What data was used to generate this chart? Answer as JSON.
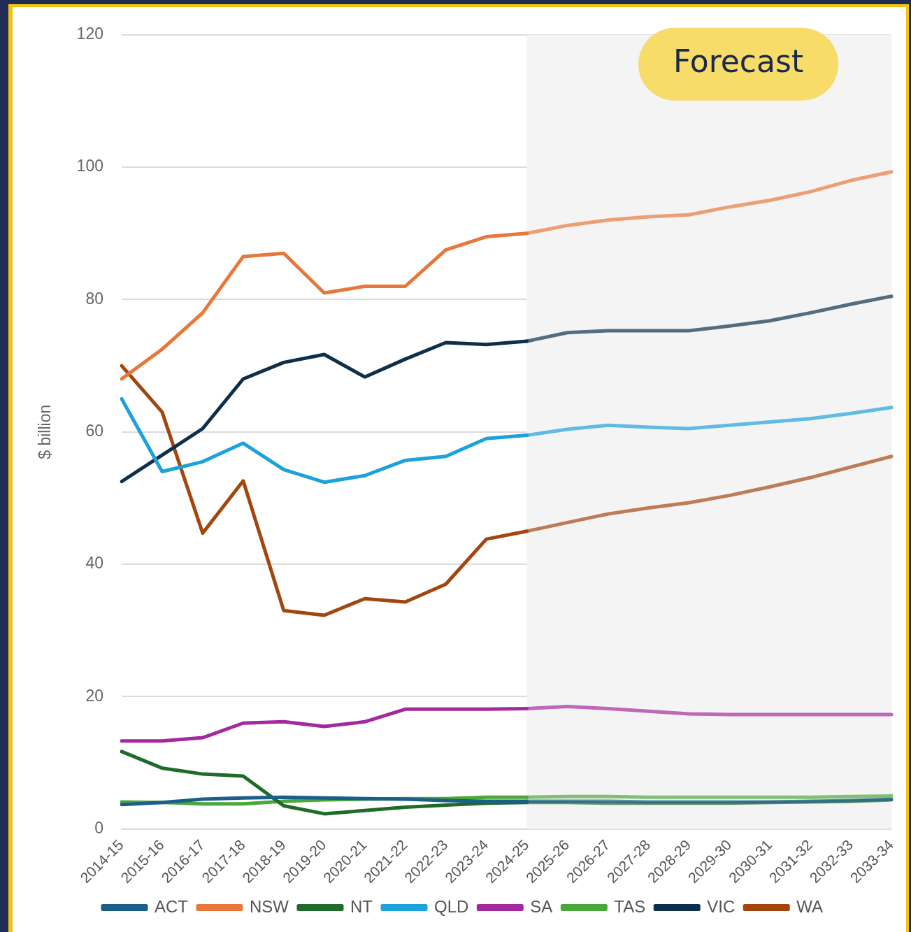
{
  "chart_data": {
    "type": "line",
    "ylabel": "$ billion",
    "categories": [
      "2014-15",
      "2015-16",
      "2016-17",
      "2017-18",
      "2018-19",
      "2019-20",
      "2020-21",
      "2021-22",
      "2022-23",
      "2023-24",
      "2024-25",
      "2025-26",
      "2026-27",
      "2027-28",
      "2028-29",
      "2029-30",
      "2030-31",
      "2031-32",
      "2032-33",
      "2033-34"
    ],
    "series": [
      {
        "name": "ACT",
        "color": "#1a5f8a",
        "values": [
          3.7,
          4.0,
          4.5,
          4.7,
          4.8,
          4.7,
          4.6,
          4.5,
          4.3,
          4.2,
          4.2,
          4.2,
          4.2,
          4.1,
          4.1,
          4.1,
          4.1,
          4.2,
          4.3,
          4.5
        ]
      },
      {
        "name": "NSW",
        "color": "#e8773a",
        "values": [
          68,
          72.5,
          78,
          86.5,
          87,
          81,
          82,
          82,
          87.5,
          89.5,
          90,
          91.2,
          92,
          92.5,
          92.8,
          94,
          95,
          96.3,
          98,
          99.3
        ]
      },
      {
        "name": "NT",
        "color": "#1e6b2a",
        "values": [
          11.7,
          9.2,
          8.3,
          8,
          3.5,
          2.3,
          2.8,
          3.3,
          3.6,
          3.9,
          4.0,
          4.0,
          3.9,
          3.9,
          3.9,
          3.9,
          4.0,
          4.1,
          4.2,
          4.4
        ]
      },
      {
        "name": "QLD",
        "color": "#1ba1db",
        "values": [
          65,
          54,
          55.5,
          58.3,
          54.3,
          52.4,
          53.4,
          55.7,
          56.3,
          59,
          59.5,
          60.4,
          61,
          60.7,
          60.5,
          61,
          61.5,
          62,
          62.8,
          63.7
        ]
      },
      {
        "name": "SA",
        "color": "#a3299e",
        "values": [
          13.3,
          13.3,
          13.8,
          16,
          16.2,
          15.5,
          16.2,
          18.1,
          18.1,
          18.1,
          18.2,
          18.5,
          18.2,
          17.8,
          17.4,
          17.3,
          17.3,
          17.3,
          17.3,
          17.3
        ]
      },
      {
        "name": "TAS",
        "color": "#4aa83a",
        "values": [
          4.1,
          4.0,
          3.8,
          3.8,
          4.2,
          4.4,
          4.5,
          4.6,
          4.6,
          4.8,
          4.8,
          4.9,
          4.9,
          4.8,
          4.8,
          4.8,
          4.8,
          4.8,
          4.9,
          5.0
        ]
      },
      {
        "name": "VIC",
        "color": "#0d2f4a",
        "values": [
          52.5,
          56.5,
          60.5,
          68,
          70.5,
          71.7,
          68.3,
          71,
          73.5,
          73.2,
          73.7,
          75,
          75.3,
          75.3,
          75.3,
          76,
          76.8,
          78,
          79.3,
          80.5
        ]
      },
      {
        "name": "WA",
        "color": "#a3460e",
        "values": [
          70,
          63,
          44.7,
          52.6,
          33,
          32.3,
          34.8,
          34.3,
          37,
          43.8,
          45,
          46.3,
          47.6,
          48.5,
          49.3,
          50.4,
          51.7,
          53.1,
          54.7,
          56.3
        ]
      }
    ],
    "ylim": [
      0,
      120
    ],
    "yticks": [
      0,
      20,
      40,
      60,
      80,
      100,
      120
    ],
    "grid": "y",
    "legend": "bottom",
    "marker": "none",
    "line_style": "solid",
    "bands": [
      {
        "axis": "x",
        "from": "2024-25",
        "to": "2033-34",
        "label": "Forecast",
        "color": "#f4f4f4"
      }
    ]
  }
}
